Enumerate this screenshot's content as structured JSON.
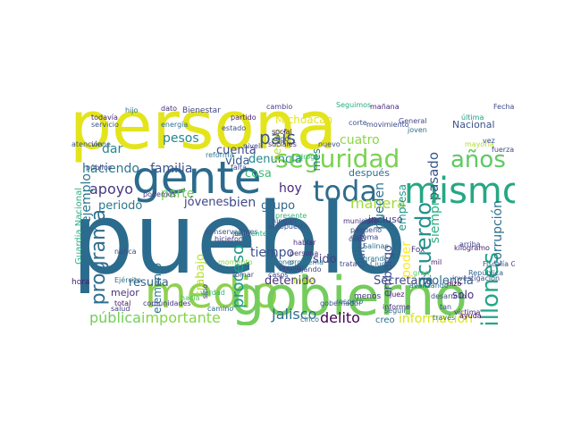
{
  "words": [
    {
      "text": "persona",
      "color": "#e3e41b"
    },
    {
      "text": "pueblo",
      "color": "#2b6b8d"
    },
    {
      "text": "gente",
      "color": "#2b6b8d"
    },
    {
      "text": "mismo",
      "color": "#26a784"
    },
    {
      "text": "medio",
      "color": "#8fd14f"
    },
    {
      "text": "gobierno",
      "color": "#74cc5c"
    },
    {
      "text": "programa",
      "color": "#2e6e8e"
    },
    {
      "text": "seguridad",
      "color": "#7ad151"
    },
    {
      "text": "toda",
      "color": "#2f6c8e"
    },
    {
      "text": "años",
      "color": "#5ec962"
    },
    {
      "text": "millones",
      "color": "#22a785"
    },
    {
      "text": "acuerdo",
      "color": "#21918c"
    },
    {
      "text": "país",
      "color": "#39568c"
    },
    {
      "text": "haciendo",
      "color": "#2a788e"
    },
    {
      "text": "familia",
      "color": "#3b528b"
    },
    {
      "text": "apoyo",
      "color": "#453781"
    },
    {
      "text": "parte",
      "color": "#75d054"
    },
    {
      "text": "jóvenes",
      "color": "#404688"
    },
    {
      "text": "bien",
      "color": "#3e4a89"
    },
    {
      "text": "grupo",
      "color": "#31688e"
    },
    {
      "text": "hoy",
      "color": "#482878"
    },
    {
      "text": "manera",
      "color": "#a2da37"
    },
    {
      "text": "Secretaría",
      "color": "#3f4788"
    },
    {
      "text": "violencia",
      "color": "#31688e"
    },
    {
      "text": "información",
      "color": "#dae319"
    },
    {
      "text": "pública",
      "color": "#70cf57"
    },
    {
      "text": "importante",
      "color": "#84d44b"
    },
    {
      "text": "Jalisco",
      "color": "#2d708e"
    },
    {
      "text": "delito",
      "color": "#440154"
    },
    {
      "text": "tiempo",
      "color": "#3b528b"
    },
    {
      "text": "detenido",
      "color": "#46327e"
    },
    {
      "text": "resulta",
      "color": "#33638d"
    },
    {
      "text": "elemento",
      "color": "#2c728e"
    },
    {
      "text": "proceso",
      "color": "#1f9a8a"
    },
    {
      "text": "trabajo",
      "color": "#b5de2b"
    },
    {
      "text": "pesos",
      "color": "#25858e"
    },
    {
      "text": "cuenta",
      "color": "#3e4989"
    },
    {
      "text": "denuncia",
      "color": "#23898e"
    },
    {
      "text": "hecho",
      "color": "#bddf26"
    },
    {
      "text": "vida",
      "color": "#375b8d"
    },
    {
      "text": "cosa",
      "color": "#3dbc74"
    },
    {
      "text": "ejemplo",
      "color": "#2a768e"
    },
    {
      "text": "dar",
      "color": "#24878e"
    },
    {
      "text": "periodo",
      "color": "#2a788e"
    },
    {
      "text": "pasado",
      "color": "#38588c"
    },
    {
      "text": "siempre",
      "color": "#2ab07f"
    },
    {
      "text": "empresa",
      "color": "#1f978b"
    },
    {
      "text": "pueden",
      "color": "#2c738e"
    },
    {
      "text": "quieren",
      "color": "#355f8d"
    },
    {
      "text": "cuatro",
      "color": "#8bd646"
    },
    {
      "text": "mes",
      "color": "#287c8e"
    },
    {
      "text": "corrupción",
      "color": "#2d708e"
    },
    {
      "text": "poder",
      "color": "#fde725"
    },
    {
      "text": "embargo",
      "color": "#3e4c8a"
    },
    {
      "text": "solo",
      "color": "#472d7b"
    },
    {
      "text": "sido",
      "color": "#423f85"
    },
    {
      "text": "Guardia Nacional",
      "color": "#2ab07f"
    },
    {
      "text": "Nacional",
      "color": "#3b528b"
    },
    {
      "text": "Michoacán",
      "color": "#e5e419"
    },
    {
      "text": "después",
      "color": "#2f6c8e"
    },
    {
      "text": "incluso",
      "color": "#433e85"
    },
    {
      "text": "Bienestar",
      "color": "#414487"
    },
    {
      "text": "cambio",
      "color": "#433d84"
    },
    {
      "text": "Seguimos",
      "color": "#27ad81"
    },
    {
      "text": "mañana",
      "color": "#482878"
    },
    {
      "text": "hijo",
      "color": "#2c738e"
    },
    {
      "text": "Fecha",
      "color": "#3e4a89"
    },
    {
      "text": "Fox",
      "color": "#453882"
    },
    {
      "text": "conservadores",
      "color": "#3a548c"
    },
    {
      "text": "Ejército",
      "color": "#2d718e"
    },
    {
      "text": "República",
      "color": "#33638d"
    },
    {
      "text": "kilogramo",
      "color": "#482173"
    },
    {
      "text": "Fiscalía General",
      "color": "#3e4c8a"
    },
    {
      "text": "investigación",
      "color": "#3f4889"
    },
    {
      "text": "municipio",
      "color": "#472d7b"
    },
    {
      "text": "siguiente",
      "color": "#25ab82"
    },
    {
      "text": "Salinas",
      "color": "#2e6f8e"
    },
    {
      "text": "maíz",
      "color": "#b8de29"
    },
    {
      "text": "menos",
      "color": "#453781"
    },
    {
      "text": "creo",
      "color": "#2c728e"
    },
    {
      "text": "informe",
      "color": "#472c7a"
    },
    {
      "text": "mejor",
      "color": "#46307e"
    },
    {
      "text": "total",
      "color": "#471164"
    },
    {
      "text": "comunidades",
      "color": "#453882"
    },
    {
      "text": "hora",
      "color": "#481a6c"
    },
    {
      "text": "ningún",
      "color": "#3b528b"
    },
    {
      "text": "aeropuerto",
      "color": "#3b528b"
    },
    {
      "text": "precio",
      "color": "#433e85"
    },
    {
      "text": "trata",
      "color": "#3f4788"
    },
    {
      "text": "gran",
      "color": "#5cc863"
    },
    {
      "text": "persona",
      "color": "#46337e"
    },
    {
      "text": "última",
      "color": "#1fa088"
    },
    {
      "text": "víctima",
      "color": "#482878"
    },
    {
      "text": "servicio",
      "color": "#3b528b"
    },
    {
      "text": "todavía",
      "color": "#482374"
    },
    {
      "text": "viene",
      "color": "#34618d"
    },
    {
      "text": "energía",
      "color": "#2d708e"
    },
    {
      "text": "atención",
      "color": "#3b528b"
    },
    {
      "text": "público",
      "color": "#3f4788"
    },
    {
      "text": "partido",
      "color": "#481f70"
    },
    {
      "text": "droga",
      "color": "#35b779"
    },
    {
      "text": "nuevo",
      "color": "#3e4c8a"
    },
    {
      "text": "joven",
      "color": "#2e6e8e"
    },
    {
      "text": "movimiento",
      "color": "#3e4989"
    },
    {
      "text": "mayoría",
      "color": "#b2dd2d"
    },
    {
      "text": "fuerza",
      "color": "#3e4c8a"
    },
    {
      "text": "vez",
      "color": "#3b528b"
    },
    {
      "text": "ayuda",
      "color": "#440154"
    },
    {
      "text": "seguir",
      "color": "#31688e"
    },
    {
      "text": "pequeño",
      "color": "#3e4a89"
    },
    {
      "text": "sistema",
      "color": "#3e4989"
    },
    {
      "text": "juez",
      "color": "#48186a"
    },
    {
      "text": "Ciudad",
      "color": "#33638d"
    },
    {
      "text": "arriba",
      "color": "#3f4788"
    },
    {
      "text": "salud",
      "color": "#423f85"
    },
    {
      "text": "nunca",
      "color": "#3e4a89"
    },
    {
      "text": "mil",
      "color": "#481769"
    },
    {
      "text": "hizo",
      "color": "#440154"
    },
    {
      "text": "grande",
      "color": "#2e6e8e"
    },
    {
      "text": "social",
      "color": "#482475"
    },
    {
      "text": "sociales",
      "color": "#46307e"
    },
    {
      "text": "nivel",
      "color": "#3f4889"
    },
    {
      "text": "digo",
      "color": "#3e4a89"
    },
    {
      "text": "presente",
      "color": "#35b779"
    },
    {
      "text": "hablar",
      "color": "#472c7a"
    },
    {
      "text": "trabajando",
      "color": "#3f4788"
    },
    {
      "text": "problema",
      "color": "#2a788e"
    },
    {
      "text": "poner",
      "color": "#2e6e8e"
    },
    {
      "text": "cabo",
      "color": "#3e4c8a"
    },
    {
      "text": "tan",
      "color": "#3b528b"
    },
    {
      "text": "través",
      "color": "#2d708e"
    },
    {
      "text": "cinco",
      "color": "#2a788e"
    },
    {
      "text": "sino",
      "color": "#46327e"
    },
    {
      "text": "casos",
      "color": "#3e4a89"
    },
    {
      "text": "corte",
      "color": "#3b528b"
    },
    {
      "text": "hicieron",
      "color": "#46307e"
    },
    {
      "text": "momento",
      "color": "#8bd646"
    },
    {
      "text": "hacia",
      "color": "#4ac16d"
    },
    {
      "text": "verdad",
      "color": "#34b679"
    },
    {
      "text": "camino",
      "color": "#31688e"
    },
    {
      "text": "tomar",
      "color": "#3b528b"
    },
    {
      "text": "junio",
      "color": "#424086"
    },
    {
      "text": "dato",
      "color": "#472d7b"
    },
    {
      "text": "General",
      "color": "#3f4889"
    },
    {
      "text": "respeto",
      "color": "#2c728e"
    },
    {
      "text": "avanzando",
      "color": "#2c728e"
    },
    {
      "text": "desarrollo",
      "color": "#3e4989"
    },
    {
      "text": "gobernador",
      "color": "#3a548c"
    },
    {
      "text": "falta",
      "color": "#3e4a89"
    },
    {
      "text": "podemos",
      "color": "#453882"
    },
    {
      "text": "estado",
      "color": "#3e4c8a"
    },
    {
      "text": "reforma",
      "color": "#2a788e"
    }
  ]
}
